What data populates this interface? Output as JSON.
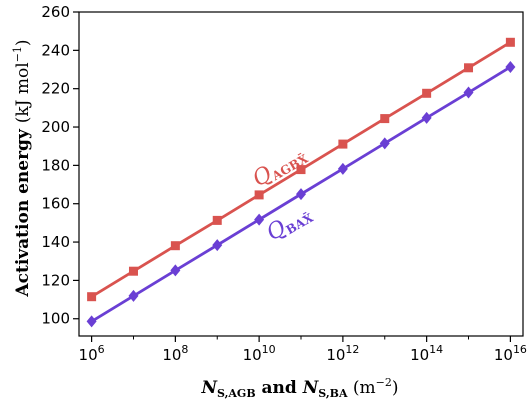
{
  "chart_data": {
    "type": "line",
    "xlabel": "N_S,AGB and N_S,BA (m⁻²)",
    "ylabel": "Activation energy (kJ mol⁻¹)",
    "x_scale": "log",
    "xlim": [
      500000,
      20000000000000000
    ],
    "ylim": [
      91,
      260
    ],
    "x_ticks": [
      1000000,
      100000000,
      10000000000,
      1000000000000,
      100000000000000,
      10000000000000000
    ],
    "x_tick_labels": [
      {
        "base": "10",
        "exp": "6"
      },
      {
        "base": "10",
        "exp": "8"
      },
      {
        "base": "10",
        "exp": "10"
      },
      {
        "base": "10",
        "exp": "12"
      },
      {
        "base": "10",
        "exp": "14"
      },
      {
        "base": "10",
        "exp": "16"
      }
    ],
    "y_ticks": [
      100,
      120,
      140,
      160,
      180,
      200,
      220,
      240,
      260
    ],
    "grid": false,
    "legend": "none",
    "x": [
      1000000,
      10000000,
      100000000,
      1000000000,
      10000000000,
      100000000000,
      1000000000000,
      10000000000000,
      100000000000000,
      1000000000000000,
      10000000000000000
    ],
    "series": [
      {
        "name": "Q_AGBX̄",
        "color": "#d9534f",
        "marker": "square",
        "values": [
          111.5,
          124.8,
          138.1,
          151.3,
          164.6,
          177.8,
          191.1,
          204.4,
          217.6,
          230.9,
          244.2
        ]
      },
      {
        "name": "Q_BAX̄",
        "color": "#6a3fd4",
        "marker": "diamond",
        "values": [
          98.6,
          111.9,
          125.2,
          138.4,
          151.7,
          165.0,
          178.2,
          191.5,
          204.8,
          218.0,
          231.3
        ]
      }
    ],
    "annotations": [
      {
        "main": "Q",
        "sub": "AGBX̄",
        "color": "#d9534f"
      },
      {
        "main": "Q",
        "sub": "BAX̄",
        "color": "#6a3fd4"
      }
    ]
  }
}
